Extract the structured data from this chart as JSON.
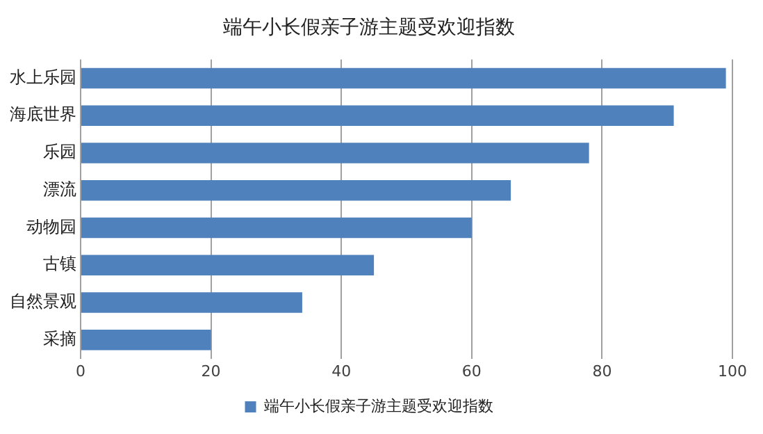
{
  "chart_data": {
    "type": "bar",
    "orientation": "horizontal",
    "title": "端午小长假亲子游主题受欢迎指数",
    "categories": [
      "水上乐园",
      "海底世界",
      "乐园",
      "漂流",
      "动物园",
      "古镇",
      "自然景观",
      "采摘"
    ],
    "series": [
      {
        "name": "端午小长假亲子游主题受欢迎指数",
        "color": "#4f81bd",
        "values": [
          99,
          91,
          78,
          66,
          60,
          45,
          34,
          20
        ]
      }
    ],
    "xlim": [
      0,
      100
    ],
    "xticks": [
      0,
      20,
      40,
      60,
      80,
      100
    ],
    "grid": "x",
    "legend": "bottom"
  }
}
